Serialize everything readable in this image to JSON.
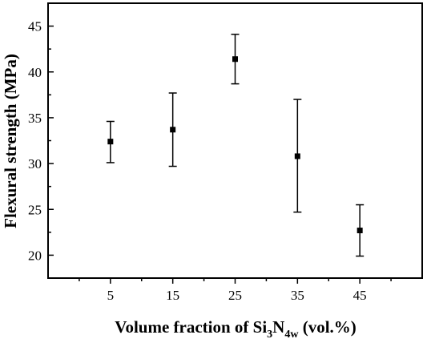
{
  "chart_data": {
    "type": "scatter",
    "title": "",
    "xlabel": {
      "pre": "Volume fraction of Si",
      "sub1": "3",
      "mid": "N",
      "sub2": "4w",
      "post": " (vol.%)"
    },
    "ylabel": "Flexural strength (MPa)",
    "xlim": [
      -5,
      55
    ],
    "ylim": [
      17.5,
      47.5
    ],
    "x_ticks": [
      5,
      15,
      25,
      35,
      45
    ],
    "y_ticks": [
      20,
      25,
      30,
      35,
      40,
      45
    ],
    "x_tick_labels": [
      "5",
      "15",
      "25",
      "35",
      "45"
    ],
    "y_tick_labels": [
      "20",
      "25",
      "30",
      "35",
      "40",
      "45"
    ],
    "grid": false,
    "series": [
      {
        "x": [
          5,
          15,
          25,
          35,
          45
        ],
        "y": [
          32.4,
          33.7,
          41.4,
          30.8,
          22.7
        ],
        "error_upper": [
          34.6,
          37.7,
          44.1,
          37.0,
          25.5
        ],
        "error_lower": [
          30.1,
          29.7,
          38.7,
          24.7,
          19.9
        ],
        "marker": "square",
        "color": "#000000"
      }
    ]
  }
}
